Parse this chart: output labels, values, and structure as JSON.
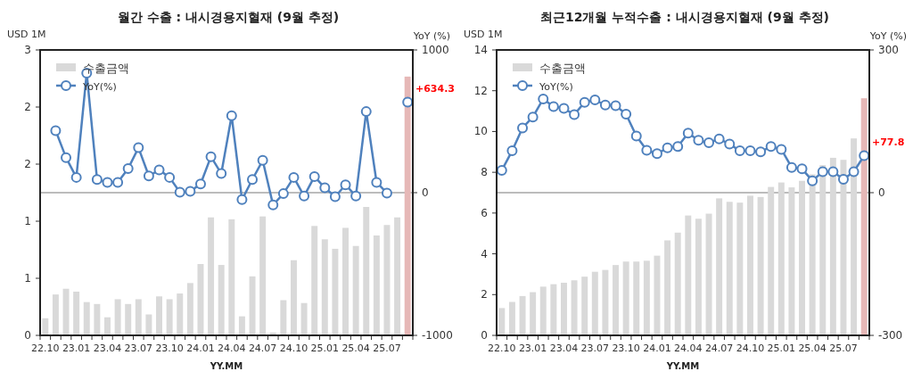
{
  "chart_data": [
    {
      "type": "bar",
      "title": "월간 수출 : 내시경용지혈재 (9월 추정)",
      "xlabel": "YY.MM",
      "ylabel": "USD 1M",
      "y2label": "YoY (%)",
      "legend": "top left",
      "marker": "circle",
      "categories": [
        "22.10",
        null,
        null,
        "23.01",
        null,
        null,
        "23.04",
        null,
        null,
        "23.07",
        null,
        null,
        "23.10",
        null,
        null,
        "24.01",
        null,
        null,
        "24.04",
        null,
        null,
        "24.07",
        null,
        null,
        "24.10",
        null,
        null,
        "25.01",
        null,
        null,
        "25.04",
        null,
        null,
        "25.07",
        null,
        null
      ],
      "series": [
        {
          "name": "수출금액",
          "colors": [
            "#d9d9d9",
            "#d9d9d9",
            "#d9d9d9",
            "#d9d9d9",
            "#d9d9d9",
            "#d9d9d9",
            "#d9d9d9",
            "#d9d9d9",
            "#d9d9d9",
            "#d9d9d9",
            "#d9d9d9",
            "#d9d9d9",
            "#d9d9d9",
            "#d9d9d9",
            "#d9d9d9",
            "#d9d9d9",
            "#d9d9d9",
            "#d9d9d9",
            "#d9d9d9",
            "#d9d9d9",
            "#d9d9d9",
            "#d9d9d9",
            "#d9d9d9",
            "#d9d9d9",
            "#d9d9d9",
            "#d9d9d9",
            "#d9d9d9",
            "#d9d9d9",
            "#d9d9d9",
            "#d9d9d9",
            "#d9d9d9",
            "#d9d9d9",
            "#d9d9d9",
            "#d9d9d9",
            "#d9d9d9",
            "#e6b8b7"
          ],
          "values": [
            0.18,
            0.43,
            0.49,
            0.46,
            0.35,
            0.33,
            0.19,
            0.38,
            0.33,
            0.38,
            0.22,
            0.41,
            0.38,
            0.44,
            0.55,
            0.75,
            1.24,
            0.74,
            1.22,
            0.2,
            0.62,
            1.25,
            0.03,
            0.37,
            0.79,
            0.34,
            1.15,
            1.01,
            0.91,
            1.13,
            0.94,
            1.35,
            1.05,
            1.16,
            1.24,
            2.72
          ]
        },
        {
          "name": "YoY(%)",
          "type": "line",
          "axis": "y2",
          "color": "#4f81bd",
          "values": [
            null,
            435,
            246,
            107,
            838,
            92,
            72,
            72,
            169,
            315,
            117,
            159,
            107,
            3,
            9,
            61,
            252,
            134,
            539,
            -49,
            92,
            226,
            -86,
            -7,
            107,
            -24,
            113,
            34,
            -28,
            55,
            -24,
            568,
            72,
            -3,
            null,
            634.3
          ]
        }
      ],
      "ylim": [
        0,
        3
      ],
      "yticks": [
        0,
        {
          "value": 0.6,
          "label": "1"
        },
        {
          "value": 1.2,
          "label": "1"
        },
        {
          "value": 1.8,
          "label": "2"
        },
        {
          "value": 2.4,
          "label": "2"
        },
        3
      ],
      "y2lim": [
        -1000,
        1000
      ],
      "y2ticks": [
        -1000,
        0,
        1000
      ],
      "ref_lines": [
        {
          "axis": "y2",
          "value": 0,
          "color": "#a6a6a6"
        }
      ],
      "annotations": [
        "+634.3"
      ]
    },
    {
      "type": "bar",
      "title": "최근12개월 누적수출 : 내시경용지혈재 (9월 추정)",
      "xlabel": "YY.MM",
      "ylabel": "USD 1M",
      "y2label": "YoY (%)",
      "legend": "top left",
      "marker": "circle",
      "categories": [
        "22.10",
        null,
        null,
        "23.01",
        null,
        null,
        "23.04",
        null,
        null,
        "23.07",
        null,
        null,
        "23.10",
        null,
        null,
        "24.01",
        null,
        null,
        "24.04",
        null,
        null,
        "24.07",
        null,
        null,
        "24.10",
        null,
        null,
        "25.01",
        null,
        null,
        "25.04",
        null,
        null,
        "25.07",
        null,
        null
      ],
      "series": [
        {
          "name": "수출금액",
          "colors": [
            "#d9d9d9",
            "#d9d9d9",
            "#d9d9d9",
            "#d9d9d9",
            "#d9d9d9",
            "#d9d9d9",
            "#d9d9d9",
            "#d9d9d9",
            "#d9d9d9",
            "#d9d9d9",
            "#d9d9d9",
            "#d9d9d9",
            "#d9d9d9",
            "#d9d9d9",
            "#d9d9d9",
            "#d9d9d9",
            "#d9d9d9",
            "#d9d9d9",
            "#d9d9d9",
            "#d9d9d9",
            "#d9d9d9",
            "#d9d9d9",
            "#d9d9d9",
            "#d9d9d9",
            "#d9d9d9",
            "#d9d9d9",
            "#d9d9d9",
            "#d9d9d9",
            "#d9d9d9",
            "#d9d9d9",
            "#d9d9d9",
            "#d9d9d9",
            "#d9d9d9",
            "#d9d9d9",
            "#d9d9d9",
            "#e6b8b7"
          ],
          "values": [
            1.34,
            1.64,
            1.93,
            2.12,
            2.39,
            2.51,
            2.58,
            2.7,
            2.88,
            3.12,
            3.21,
            3.45,
            3.62,
            3.62,
            3.66,
            3.91,
            4.66,
            5.04,
            5.88,
            5.72,
            5.97,
            6.72,
            6.55,
            6.51,
            6.85,
            6.79,
            7.28,
            7.5,
            7.26,
            7.58,
            7.9,
            8.35,
            8.71,
            8.61,
            9.66,
            11.63
          ]
        },
        {
          "name": "YoY(%)",
          "type": "line",
          "axis": "y2",
          "color": "#4f81bd",
          "values": [
            47,
            88,
            136,
            159,
            197,
            181,
            177,
            164,
            190,
            195,
            184,
            183,
            165,
            119,
            89,
            82,
            94,
            97,
            125,
            110,
            105,
            113,
            102,
            88,
            88,
            86,
            97,
            91,
            53,
            50,
            25,
            44,
            44,
            28,
            44,
            77.8
          ]
        }
      ],
      "ylim": [
        0,
        14
      ],
      "yticks": [
        0,
        2,
        4,
        6,
        8,
        10,
        12,
        14
      ],
      "y2lim": [
        -300,
        300
      ],
      "y2ticks": [
        -300,
        0,
        300
      ],
      "ref_lines": [
        {
          "axis": "y2",
          "value": 0,
          "color": "#a6a6a6"
        }
      ],
      "annotations": [
        "+77.8"
      ]
    }
  ]
}
